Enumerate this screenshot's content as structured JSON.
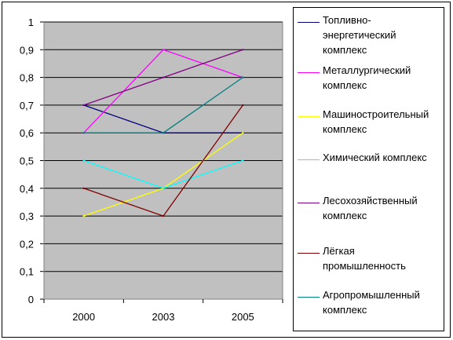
{
  "chart_data": {
    "type": "line",
    "x": [
      "2000",
      "2003",
      "2005"
    ],
    "ylim": [
      0,
      1
    ],
    "yticks": [
      "0",
      "0,1",
      "0,2",
      "0,3",
      "0,4",
      "0,5",
      "0,6",
      "0,7",
      "0,8",
      "0,9",
      "1"
    ],
    "grid": true,
    "legend_position": "right",
    "plot_background": "#c0c0c0",
    "series": [
      {
        "name": "Топливно-энергетический комплекс",
        "color": "#000080",
        "values": [
          0.7,
          0.6,
          0.6
        ]
      },
      {
        "name": "Металлургический комплекс",
        "color": "#ff00ff",
        "values": [
          0.6,
          0.9,
          0.8
        ]
      },
      {
        "name": "Машиностроительный комплекс",
        "color": "#ffff00",
        "values": [
          0.3,
          0.4,
          0.6
        ]
      },
      {
        "name": "Химический комплекс",
        "color": "#00ffff",
        "values": [
          0.5,
          0.4,
          0.5
        ]
      },
      {
        "name": "Лесохозяйственный комплекс",
        "color": "#800080",
        "values": [
          0.7,
          0.8,
          0.9
        ]
      },
      {
        "name": "Лёгкая промышленность",
        "color": "#800000",
        "values": [
          0.4,
          0.3,
          0.7
        ]
      },
      {
        "name": "Агропромышленный комплекс",
        "color": "#008080",
        "values": [
          0.6,
          0.6,
          0.8
        ]
      }
    ]
  }
}
